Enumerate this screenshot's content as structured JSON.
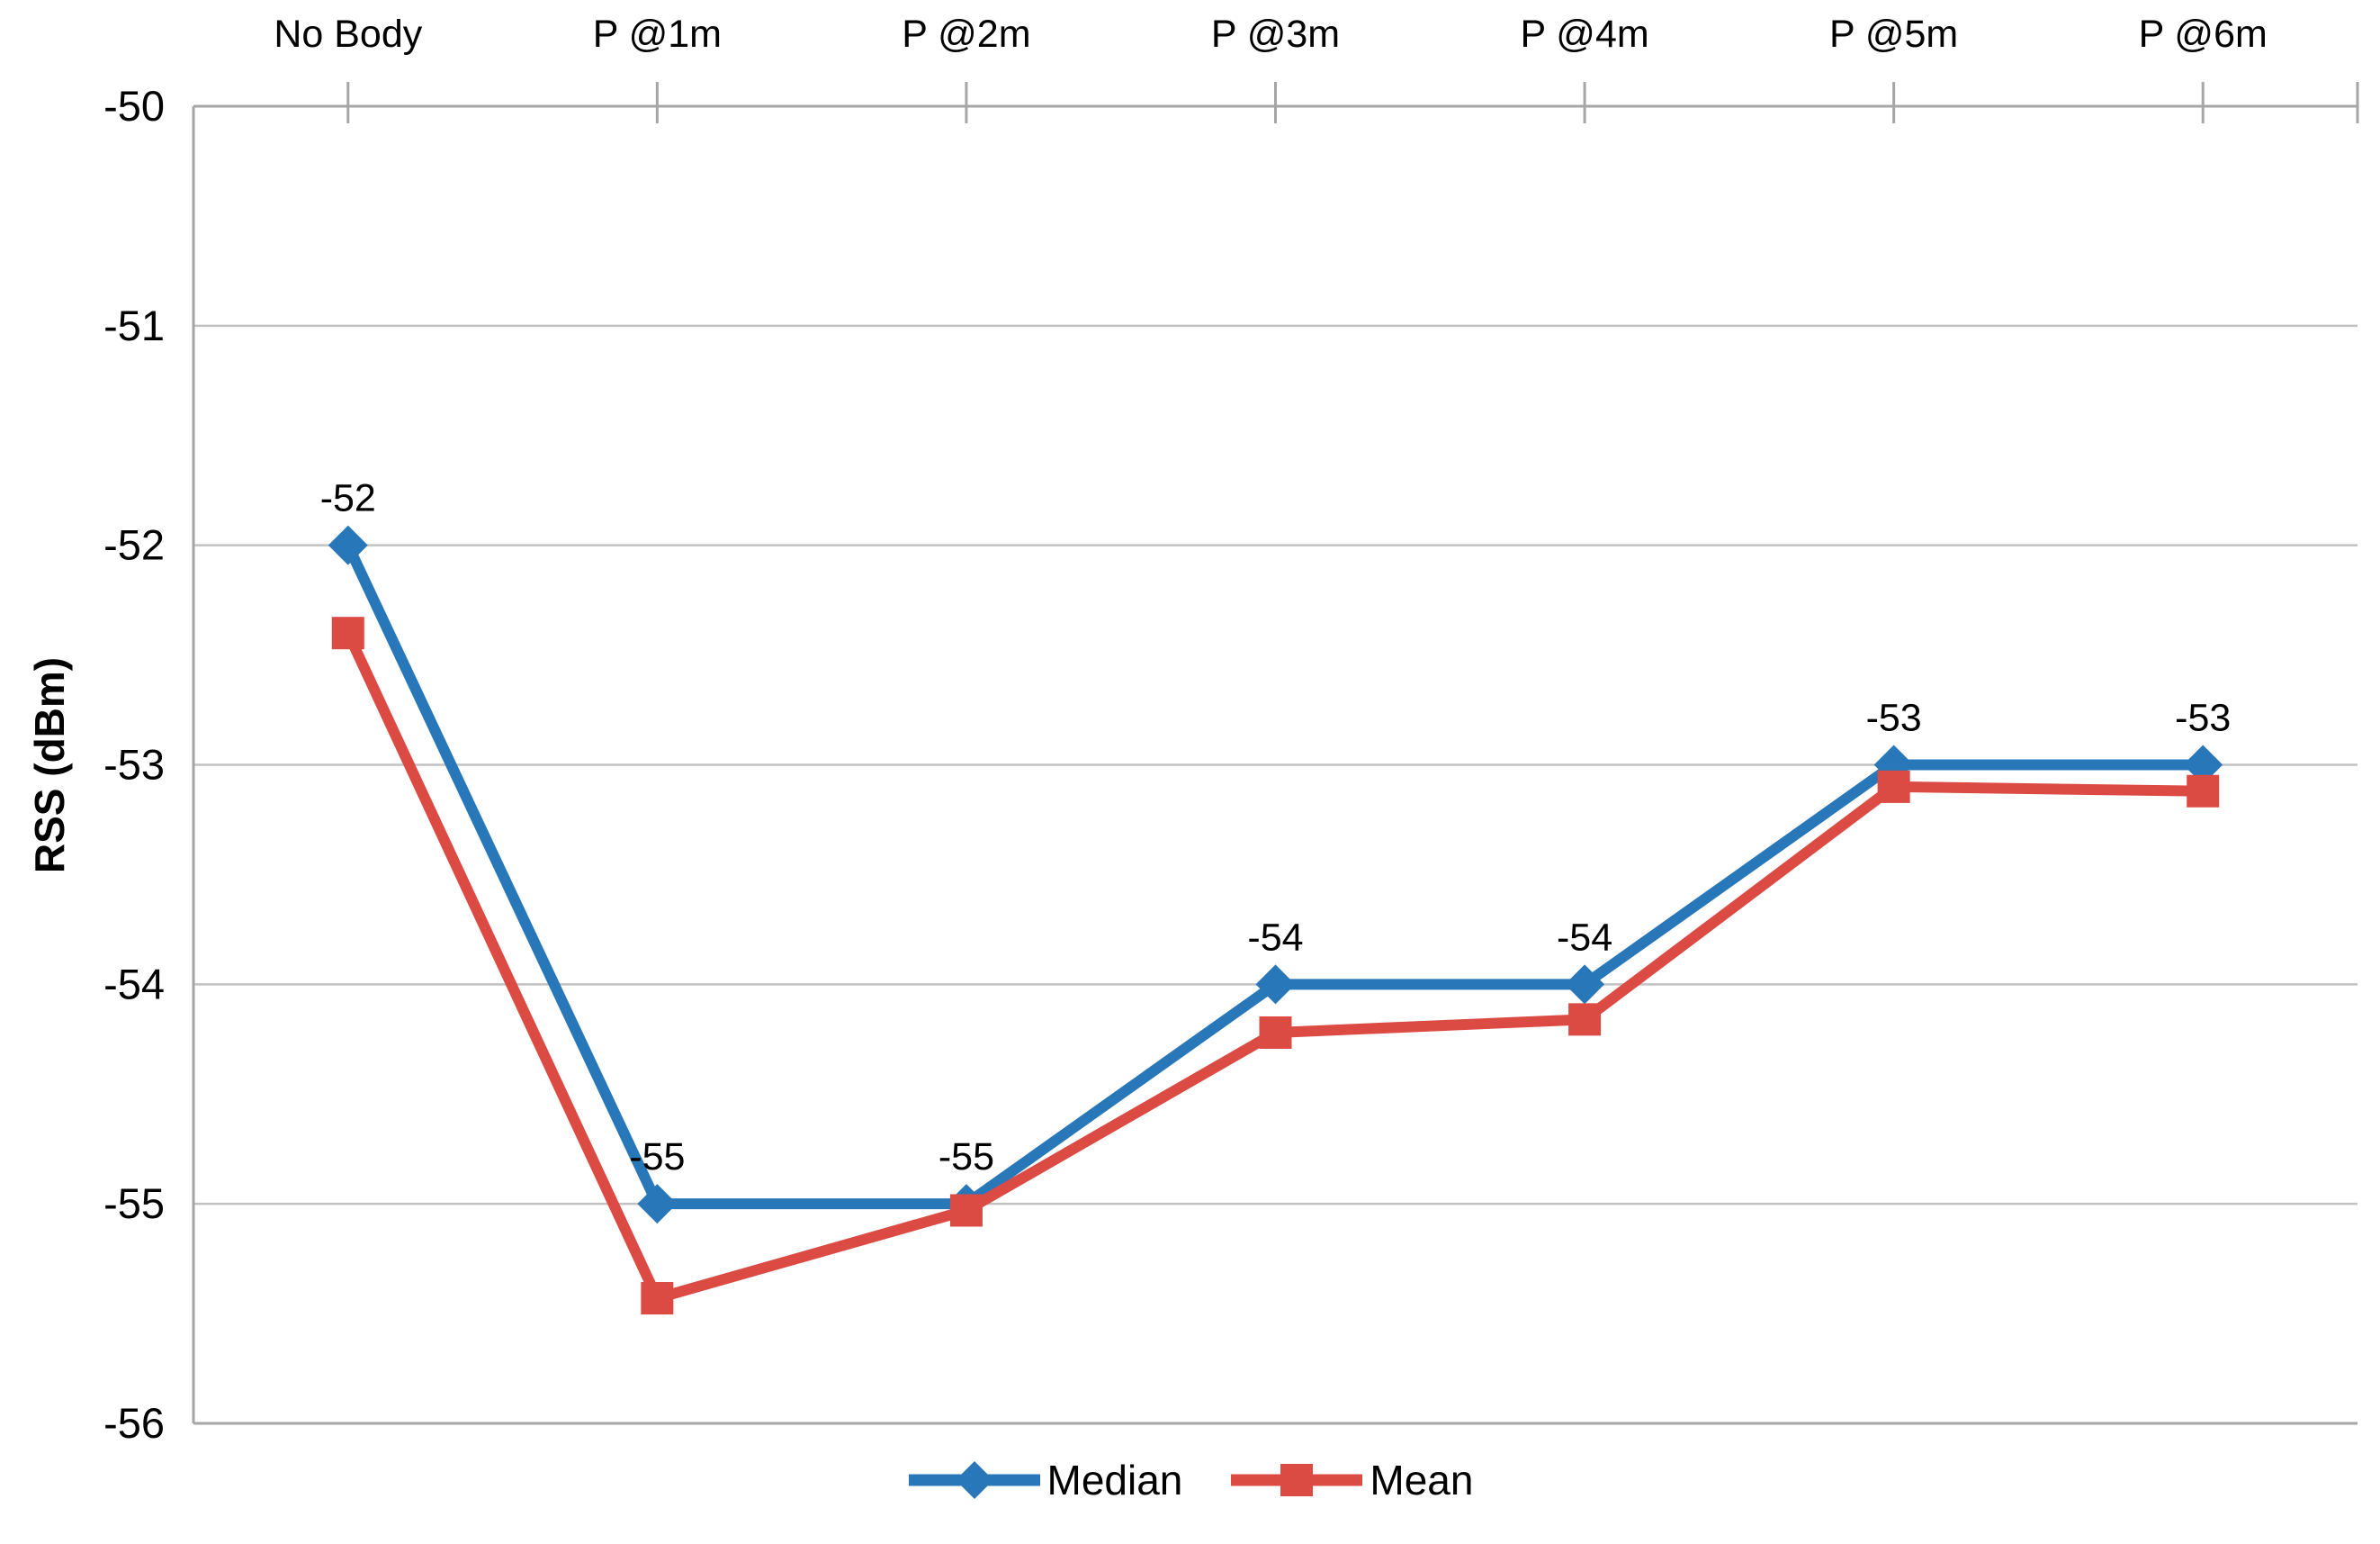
{
  "chart_data": {
    "type": "line",
    "categories": [
      "No Body",
      "P @1m",
      "P @2m",
      "P @3m",
      "P @4m",
      "P @5m",
      "P @6m"
    ],
    "series": [
      {
        "name": "Median",
        "marker": "diamond",
        "color": "#2878B9",
        "values": [
          -52,
          -55,
          -55,
          -54,
          -54,
          -53,
          -53
        ],
        "data_labels": [
          "-52",
          "-55",
          "-55",
          "-54",
          "-54",
          "-53",
          "-53"
        ]
      },
      {
        "name": "Mean",
        "marker": "square",
        "color": "#DB4B44",
        "values": [
          -52.4,
          -55.43,
          -55.03,
          -54.22,
          -54.16,
          -53.1,
          -53.12
        ]
      }
    ],
    "xlabel": "",
    "ylabel": "RSS (dBm)",
    "ylim": [
      -56,
      -50
    ],
    "yticks": [
      -50,
      -51,
      -52,
      -53,
      -54,
      -55,
      -56
    ],
    "ytick_labels": [
      "-50",
      "-51",
      "-52",
      "-53",
      "-54",
      "-55",
      "-56"
    ],
    "grid": true,
    "x_axis_position": "top",
    "legend_position": "bottom-center",
    "colors": {
      "gridline": "#C2C2C2",
      "axis": "#A6A6A6",
      "text": "#000000",
      "background": "#FFFFFF"
    }
  }
}
